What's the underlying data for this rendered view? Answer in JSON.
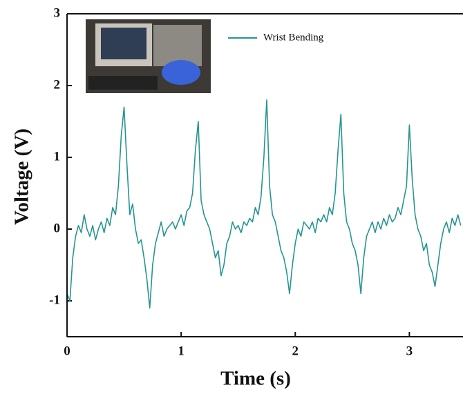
{
  "chart_data": {
    "type": "line",
    "xlabel": "Time (s)",
    "ylabel": "Voltage (V)",
    "xlim": [
      0,
      3.47
    ],
    "ylim": [
      -1.5,
      3
    ],
    "xticks": [
      0,
      1,
      2,
      3
    ],
    "yticks": [
      -1,
      0,
      1,
      2,
      3
    ],
    "legend": "top",
    "x": [
      0,
      0.025,
      0.05,
      0.075,
      0.1,
      0.125,
      0.15,
      0.175,
      0.2,
      0.225,
      0.25,
      0.275,
      0.3,
      0.325,
      0.35,
      0.375,
      0.4,
      0.425,
      0.45,
      0.475,
      0.5,
      0.525,
      0.55,
      0.575,
      0.6,
      0.625,
      0.65,
      0.675,
      0.7,
      0.725,
      0.75,
      0.775,
      0.8,
      0.825,
      0.85,
      0.875,
      0.9,
      0.925,
      0.95,
      0.975,
      1.0,
      1.025,
      1.05,
      1.075,
      1.1,
      1.125,
      1.15,
      1.175,
      1.2,
      1.225,
      1.25,
      1.275,
      1.3,
      1.325,
      1.35,
      1.375,
      1.4,
      1.425,
      1.45,
      1.475,
      1.5,
      1.525,
      1.55,
      1.575,
      1.6,
      1.625,
      1.65,
      1.675,
      1.7,
      1.725,
      1.75,
      1.775,
      1.8,
      1.825,
      1.85,
      1.875,
      1.9,
      1.925,
      1.95,
      1.975,
      2.0,
      2.025,
      2.05,
      2.075,
      2.1,
      2.125,
      2.15,
      2.175,
      2.2,
      2.225,
      2.25,
      2.275,
      2.3,
      2.325,
      2.35,
      2.375,
      2.4,
      2.425,
      2.45,
      2.475,
      2.5,
      2.525,
      2.55,
      2.575,
      2.6,
      2.625,
      2.65,
      2.675,
      2.7,
      2.725,
      2.75,
      2.775,
      2.8,
      2.825,
      2.85,
      2.875,
      2.9,
      2.925,
      2.95,
      2.975,
      3.0,
      3.025,
      3.05,
      3.075,
      3.1,
      3.125,
      3.15,
      3.175,
      3.2,
      3.225,
      3.25,
      3.275,
      3.3,
      3.325,
      3.35,
      3.375,
      3.4,
      3.425,
      3.45
    ],
    "series": [
      {
        "name": "Wrist Bending",
        "color": "#25958f",
        "values": [
          -0.9,
          -1.0,
          -0.4,
          -0.1,
          0.05,
          -0.05,
          0.2,
          0.0,
          -0.1,
          0.05,
          -0.15,
          0.0,
          0.1,
          -0.05,
          0.15,
          0.05,
          0.3,
          0.2,
          0.6,
          1.3,
          1.7,
          0.9,
          0.2,
          0.35,
          0.0,
          -0.2,
          -0.15,
          -0.4,
          -0.7,
          -1.1,
          -0.5,
          -0.2,
          -0.05,
          0.1,
          -0.1,
          0.0,
          0.05,
          0.1,
          0.0,
          0.1,
          0.2,
          0.05,
          0.25,
          0.3,
          0.5,
          1.1,
          1.5,
          0.4,
          0.2,
          0.1,
          0.0,
          -0.2,
          -0.4,
          -0.3,
          -0.65,
          -0.5,
          -0.2,
          -0.1,
          0.1,
          0.0,
          0.05,
          -0.05,
          0.1,
          0.05,
          0.15,
          0.1,
          0.3,
          0.2,
          0.45,
          1.0,
          1.8,
          0.6,
          0.2,
          0.1,
          -0.1,
          -0.3,
          -0.4,
          -0.6,
          -0.9,
          -0.5,
          -0.2,
          0.0,
          -0.1,
          0.1,
          0.05,
          0.0,
          0.1,
          -0.05,
          0.15,
          0.1,
          0.2,
          0.1,
          0.3,
          0.2,
          0.5,
          1.1,
          1.6,
          0.5,
          0.1,
          0.0,
          -0.2,
          -0.3,
          -0.5,
          -0.9,
          -0.4,
          -0.1,
          0.0,
          0.1,
          -0.05,
          0.1,
          0.0,
          0.15,
          0.05,
          0.2,
          0.1,
          0.15,
          0.3,
          0.2,
          0.4,
          0.6,
          1.45,
          0.7,
          0.2,
          0.0,
          -0.1,
          -0.3,
          -0.2,
          -0.5,
          -0.6,
          -0.8,
          -0.5,
          -0.2,
          0.0,
          0.1,
          -0.05,
          0.15,
          0.05,
          0.2,
          0.05
        ]
      }
    ]
  }
}
